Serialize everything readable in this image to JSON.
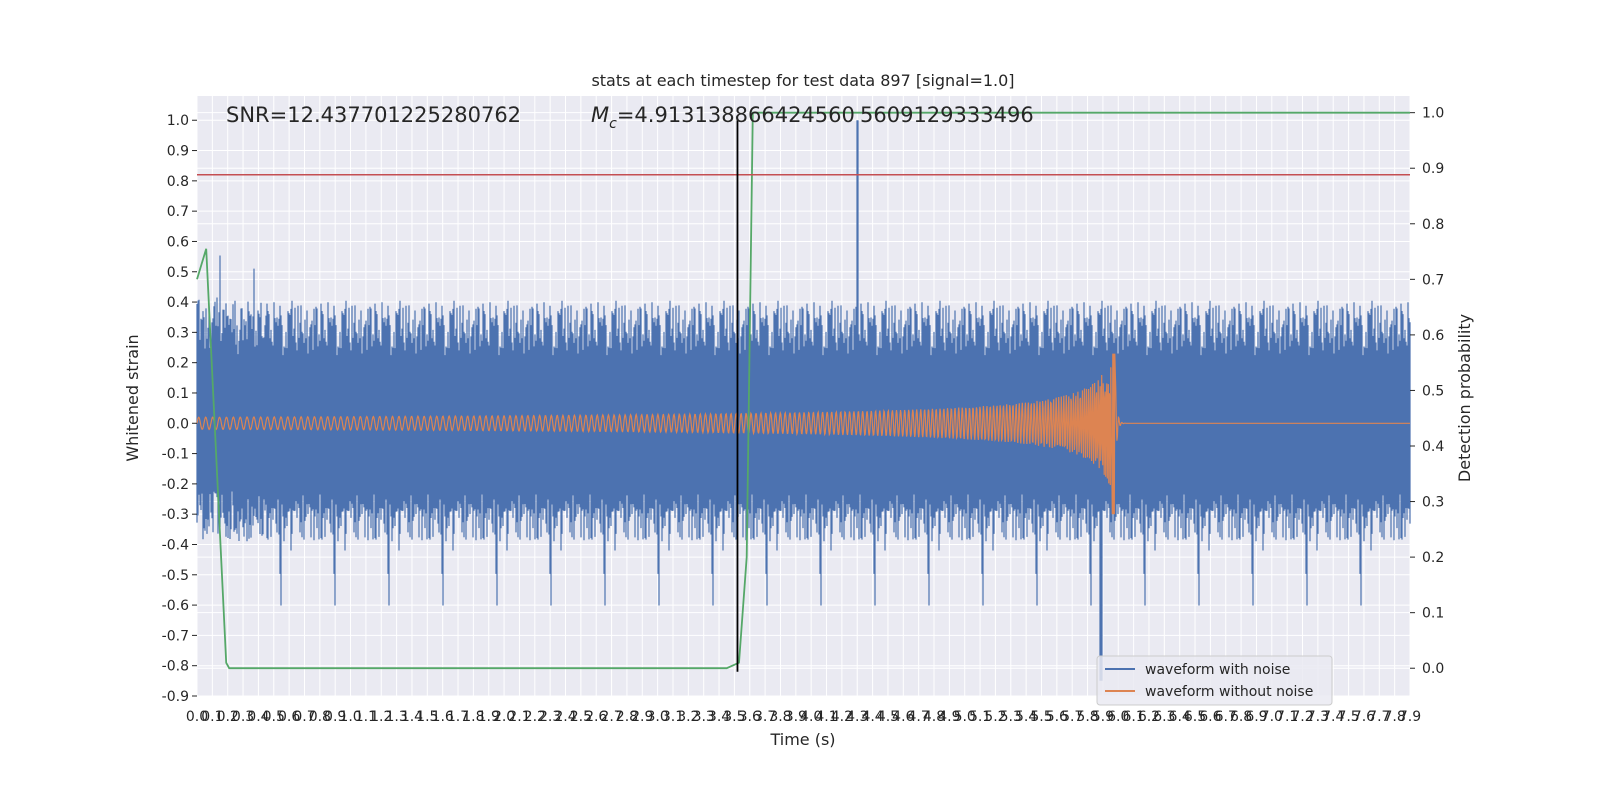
{
  "chart_data": {
    "type": "line",
    "title": "stats at each timestep for test data 897 [signal=1.0]",
    "xlabel": "Time (s)",
    "ylabel": "Whitened strain",
    "y2label": "Detection probability",
    "xlim": [
      0.0,
      7.9
    ],
    "ylim": [
      -0.9,
      1.08
    ],
    "y2lim": [
      -0.05,
      1.03
    ],
    "x_tick_step": 0.1,
    "y_ticks": [
      1.0,
      0.9,
      0.8,
      0.7,
      0.6,
      0.5,
      0.4,
      0.3,
      0.2,
      0.1,
      0.0,
      -0.1,
      -0.2,
      -0.3,
      -0.4,
      -0.5,
      -0.6,
      -0.7,
      -0.8,
      -0.9
    ],
    "y2_ticks": [
      1.0,
      0.9,
      0.8,
      0.7,
      0.6,
      0.5,
      0.4,
      0.3,
      0.2,
      0.1,
      0.0
    ],
    "grid": true,
    "legend_position": "lower-right",
    "annotations": {
      "snr": "SNR=12.437701225280762",
      "mc_prefix": "M",
      "mc_sub": "c",
      "mc_value": "=4.913138866424560",
      "overlap": "5609129333496"
    },
    "colors": {
      "noise": "#4c72b0",
      "clean": "#dd8452",
      "probability": "#55a868",
      "threshold": "#c44e52",
      "marker": "#000000",
      "axes_bg": "#eaeaf2",
      "grid": "#ffffff"
    },
    "series": [
      {
        "name": "waveform with noise",
        "axis": "left",
        "description_envelope": {
          "x_range": [
            0.0,
            7.9
          ],
          "typical_abs": 0.3,
          "peak": 1.0,
          "peak_x": 4.3,
          "min": -0.85
        }
      },
      {
        "name": "waveform without noise",
        "axis": "left",
        "chirp": {
          "x_start": 0.0,
          "x_merger": 5.98,
          "amp_start": 0.02,
          "amp_peak_pos": 0.23,
          "amp_peak_neg": -0.3
        }
      },
      {
        "axis": "right",
        "x": [
          0.0,
          0.06,
          0.19,
          0.21,
          3.45,
          3.53,
          3.58,
          3.62,
          7.9
        ],
        "y": [
          0.7,
          0.755,
          0.01,
          0.0,
          0.0,
          0.01,
          0.2,
          1.0,
          1.0
        ]
      }
    ],
    "threshold_y": 0.82,
    "marker_x": 3.52,
    "marker_y_range": [
      -0.82,
      1.0
    ]
  }
}
